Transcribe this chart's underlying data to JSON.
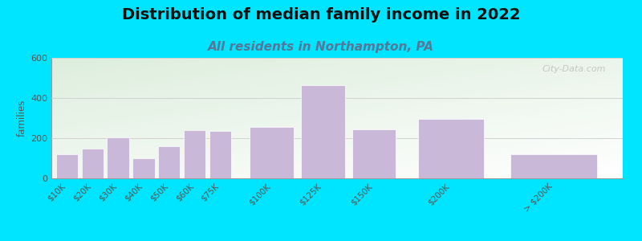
{
  "title": "Distribution of median family income in 2022",
  "subtitle": "All residents in Northampton, PA",
  "ylabel": "families",
  "categories": [
    "$10K",
    "$20K",
    "$30K",
    "$40K",
    "$50K",
    "$60K",
    "$75K",
    "$100K",
    "$125K",
    "$150K",
    "$200K",
    "> $200K"
  ],
  "values": [
    120,
    150,
    205,
    100,
    160,
    240,
    235,
    255,
    465,
    245,
    295,
    120
  ],
  "bar_color": "#c9b8d8",
  "bar_edge_color": "#ffffff",
  "ylim": [
    0,
    600
  ],
  "yticks": [
    0,
    200,
    400,
    600
  ],
  "background_color": "#00e5ff",
  "grad_top_left": "#ddeedd",
  "grad_bottom_right": "#ffffff",
  "title_fontsize": 14,
  "subtitle_fontsize": 11,
  "watermark": "City-Data.com"
}
